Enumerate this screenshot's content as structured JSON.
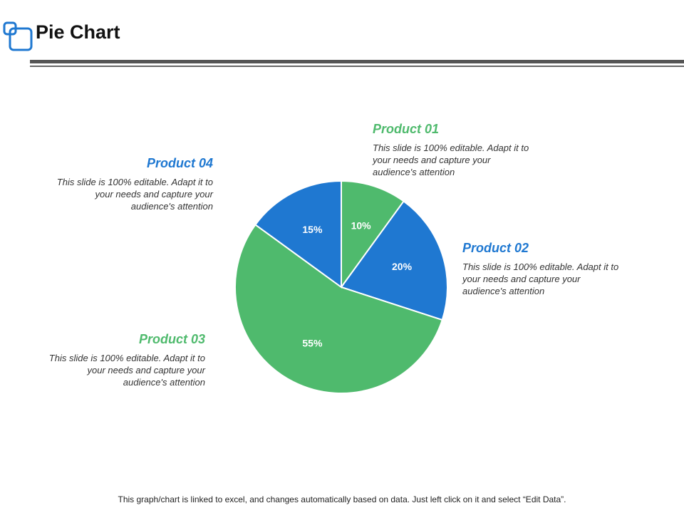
{
  "page": {
    "title": "Pie Chart",
    "footer_note": "This graph/chart is linked to excel, and changes automatically based on data. Just left click on it and select “Edit Data”."
  },
  "colors": {
    "green": "#4fba6d",
    "blue": "#1f78d1",
    "logo": "#1f78d1"
  },
  "chart_data": {
    "type": "pie",
    "title": "Pie Chart",
    "categories": [
      "Product 01",
      "Product 02",
      "Product 03",
      "Product 04"
    ],
    "values": [
      10,
      20,
      55,
      15
    ],
    "labels": [
      "10%",
      "20%",
      "55%",
      "15%"
    ],
    "colors": [
      "#4fba6d",
      "#1f78d1",
      "#4fba6d",
      "#1f78d1"
    ],
    "start_angle": "12 o'clock",
    "direction": "clockwise"
  },
  "callouts": [
    {
      "title": "Product 01",
      "description": "This slide is 100% editable. Adapt it to your needs and capture your audience's attention",
      "color": "#4fba6d"
    },
    {
      "title": "Product 02",
      "description": "This slide is 100% editable. Adapt it to your needs and capture your audience's attention",
      "color": "#1f78d1"
    },
    {
      "title": "Product 03",
      "description": "This slide is 100% editable. Adapt it to your needs and capture your audience's attention",
      "color": "#4fba6d"
    },
    {
      "title": "Product 04",
      "description": "This slide is 100% editable. Adapt it to your needs and capture your audience's attention",
      "color": "#1f78d1"
    }
  ]
}
